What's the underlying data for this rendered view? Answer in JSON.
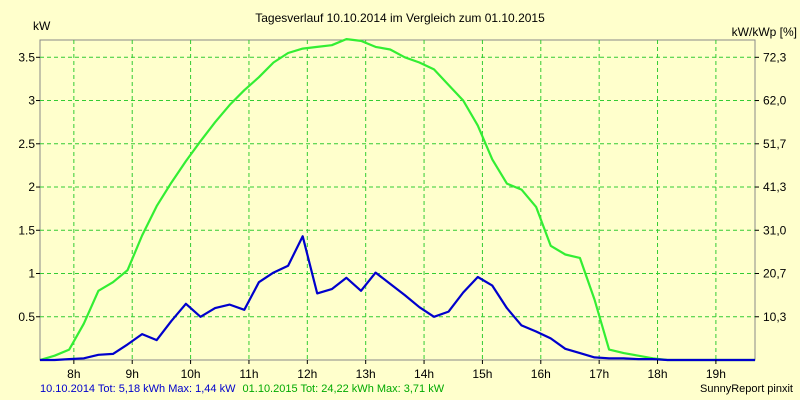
{
  "chart_data": {
    "type": "line",
    "title": "Tagesverlauf 10.10.2014 im Vergleich zum 01.10.2015",
    "ylabel_left": "kW",
    "ylabel_right": "kW/kWp [%]",
    "x_ticks": [
      "8h",
      "9h",
      "10h",
      "11h",
      "12h",
      "13h",
      "14h",
      "15h",
      "16h",
      "17h",
      "18h",
      "19h"
    ],
    "x_tick_values": [
      8,
      9,
      10,
      11,
      12,
      13,
      14,
      15,
      16,
      17,
      18,
      19
    ],
    "y_ticks": [
      "0.5",
      "1",
      "1.5",
      "2",
      "2.5",
      "3",
      "3.5"
    ],
    "y_tick_values": [
      0.5,
      1,
      1.5,
      2,
      2.5,
      3,
      3.5
    ],
    "y2_ticks": [
      "10,3",
      "20,7",
      "31,0",
      "41,3",
      "51,7",
      "62,0",
      "72,3"
    ],
    "xlim": [
      7.42,
      19.67
    ],
    "ylim": [
      0,
      3.7
    ],
    "grid": true,
    "footer_right": "SunnyReport pinxit",
    "series": [
      {
        "name": "10.10.2014",
        "legend_text": "10.10.2014 Tot: 5,18 kWh Max: 1,44 kW",
        "color": "#0000cc",
        "x": [
          7.42,
          7.67,
          7.92,
          8.17,
          8.42,
          8.67,
          8.92,
          9.17,
          9.42,
          9.67,
          9.92,
          10.17,
          10.42,
          10.67,
          10.92,
          11.17,
          11.42,
          11.67,
          11.92,
          12.17,
          12.42,
          12.67,
          12.92,
          13.17,
          13.42,
          13.67,
          13.92,
          14.17,
          14.42,
          14.67,
          14.92,
          15.17,
          15.42,
          15.67,
          15.92,
          16.17,
          16.42,
          16.67,
          16.92,
          17.17,
          17.42,
          17.67,
          17.92,
          18.17,
          18.42,
          18.67,
          18.92,
          19.17,
          19.42,
          19.67
        ],
        "values": [
          0,
          0,
          0.01,
          0.02,
          0.06,
          0.07,
          0.18,
          0.3,
          0.23,
          0.45,
          0.65,
          0.5,
          0.6,
          0.64,
          0.58,
          0.9,
          1.01,
          1.09,
          1.43,
          0.77,
          0.82,
          0.95,
          0.8,
          1.01,
          0.88,
          0.75,
          0.61,
          0.5,
          0.56,
          0.78,
          0.96,
          0.86,
          0.6,
          0.4,
          0.33,
          0.25,
          0.13,
          0.08,
          0.03,
          0.02,
          0.02,
          0.01,
          0.01,
          0,
          0,
          0,
          0,
          0,
          0,
          0
        ]
      },
      {
        "name": "01.10.2015",
        "legend_text": "01.10.2015 Tot: 24,22 kWh Max: 3,71 kW",
        "color": "#33ee33",
        "x": [
          7.42,
          7.67,
          7.92,
          8.17,
          8.42,
          8.67,
          8.92,
          9.17,
          9.42,
          9.67,
          9.92,
          10.17,
          10.42,
          10.67,
          10.92,
          11.17,
          11.42,
          11.67,
          11.92,
          12.17,
          12.42,
          12.67,
          12.92,
          13.17,
          13.42,
          13.67,
          13.92,
          14.17,
          14.42,
          14.67,
          14.92,
          15.17,
          15.42,
          15.67,
          15.92,
          16.17,
          16.42,
          16.67,
          16.92,
          17.17,
          17.42,
          17.67,
          17.92,
          18.17,
          18.42,
          18.67,
          18.92,
          19.17,
          19.42,
          19.67
        ],
        "values": [
          0,
          0.05,
          0.12,
          0.42,
          0.8,
          0.9,
          1.04,
          1.44,
          1.78,
          2.05,
          2.3,
          2.53,
          2.75,
          2.95,
          3.12,
          3.27,
          3.44,
          3.55,
          3.6,
          3.62,
          3.64,
          3.71,
          3.69,
          3.62,
          3.59,
          3.5,
          3.44,
          3.36,
          3.18,
          3.0,
          2.71,
          2.32,
          2.04,
          1.97,
          1.77,
          1.32,
          1.22,
          1.18,
          0.7,
          0.12,
          0.08,
          0.05,
          0.02,
          0.0,
          0,
          0,
          0,
          0,
          0,
          0
        ]
      }
    ]
  }
}
